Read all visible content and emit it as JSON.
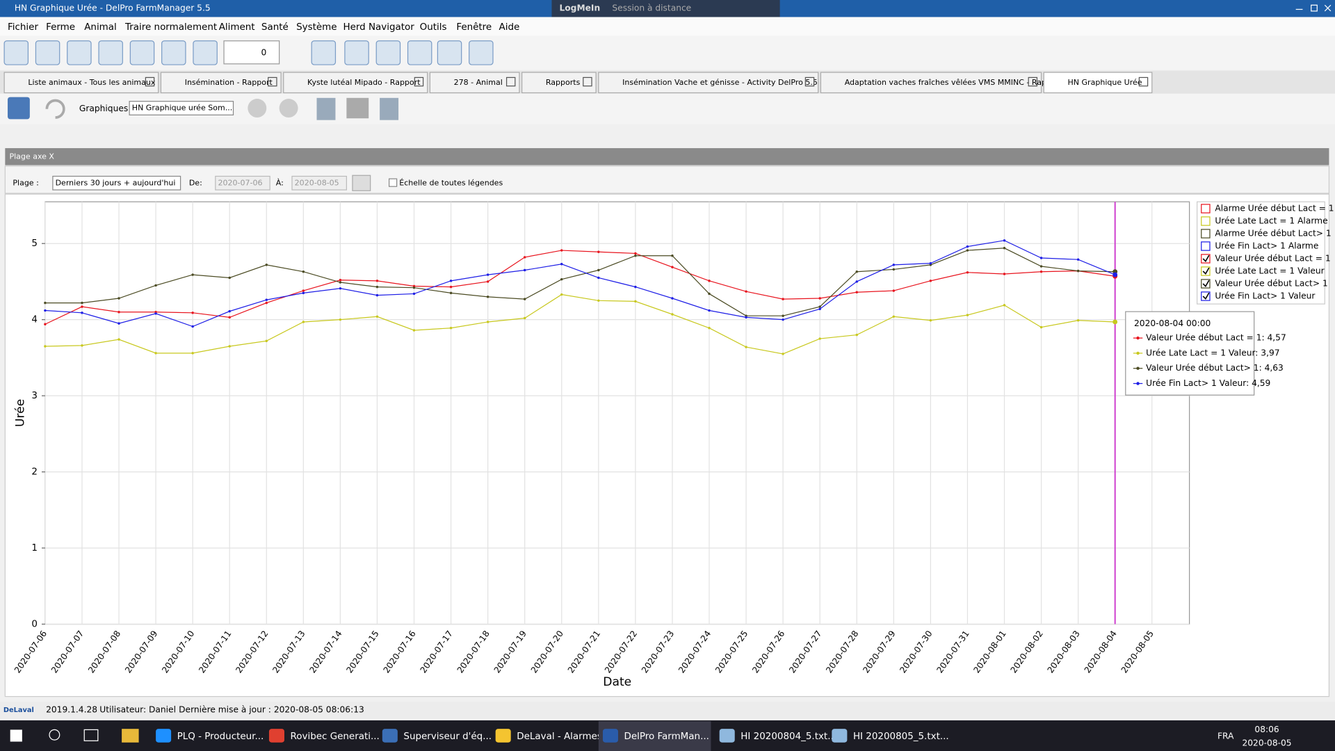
{
  "window": {
    "title": "HN Graphique Urée - DelPro FarmManager 5.5",
    "remote_title": "LogMeIn",
    "remote_subtitle": "Session à distance"
  },
  "menu": [
    "Fichier",
    "Ferme",
    "Animal",
    "Traire normalement",
    "Aliment",
    "Santé",
    "Système",
    "Herd Navigator",
    "Outils",
    "Fenêtre",
    "Aide"
  ],
  "toolbar": {
    "counter": "0"
  },
  "tabs": [
    "Liste animaux - Tous les animaux",
    "Insémination - Rapport",
    "Kyste lutéal Mipado - Rapport",
    "278 - Animal",
    "Rapports",
    "Insémination Vache et génisse - Activity DelPro 5.5 -",
    "Adaptation vaches fraîches vêlées VMS MMINC - Rap",
    "HN Graphique Urée"
  ],
  "graph_toolbar": {
    "label": "Graphiques",
    "selected": "HN Graphique urée Som..."
  },
  "range_panel": {
    "title": "Plage axe X",
    "plage_label": "Plage :",
    "plage": "Derniers 30 jours + aujourd'hui",
    "from_label": "De:",
    "from": "2020-07-06",
    "to_label": "À:",
    "to": "2020-08-05",
    "all_legends": "Échelle de toutes légendes"
  },
  "chart_data": {
    "type": "line",
    "xlabel": "Date",
    "ylabel": "Urée",
    "categories": [
      "2020-07-06",
      "2020-07-07",
      "2020-07-08",
      "2020-07-09",
      "2020-07-10",
      "2020-07-11",
      "2020-07-12",
      "2020-07-13",
      "2020-07-14",
      "2020-07-15",
      "2020-07-16",
      "2020-07-17",
      "2020-07-18",
      "2020-07-19",
      "2020-07-20",
      "2020-07-21",
      "2020-07-22",
      "2020-07-23",
      "2020-07-24",
      "2020-07-25",
      "2020-07-26",
      "2020-07-27",
      "2020-07-28",
      "2020-07-29",
      "2020-07-30",
      "2020-07-31",
      "2020-08-01",
      "2020-08-02",
      "2020-08-03",
      "2020-08-04",
      "2020-08-05"
    ],
    "ylim": [
      0,
      5.5
    ],
    "yticks": [
      0,
      1,
      2,
      3,
      4,
      5
    ],
    "grid": true,
    "alarm_legend": [
      {
        "name": "Alarme Urée début Lact = 1",
        "color": "#e8141e"
      },
      {
        "name": "Urée Late Lact = 1 Alarme",
        "color": "#c8c81e"
      },
      {
        "name": "Alarme Urée début Lact> 1",
        "color": "#4b4b23"
      },
      {
        "name": "Urée Fin Lact> 1 Alarme",
        "color": "#1e1ee6"
      }
    ],
    "series": [
      {
        "name": "Valeur Urée début Lact = 1",
        "color": "#e8141e",
        "values": [
          3.94,
          4.17,
          4.1,
          4.1,
          4.09,
          4.03,
          4.22,
          4.38,
          4.52,
          4.51,
          4.44,
          4.43,
          4.5,
          4.82,
          4.91,
          4.89,
          4.87,
          4.69,
          4.51,
          4.37,
          4.27,
          4.28,
          4.36,
          4.38,
          4.51,
          4.62,
          4.6,
          4.63,
          4.64,
          4.57,
          null
        ]
      },
      {
        "name": "Urée Late Lact = 1 Valeur",
        "color": "#c8c81e",
        "values": [
          3.65,
          3.66,
          3.74,
          3.56,
          3.56,
          3.65,
          3.72,
          3.97,
          4.0,
          4.04,
          3.86,
          3.89,
          3.97,
          4.02,
          4.33,
          4.25,
          4.24,
          4.07,
          3.89,
          3.64,
          3.55,
          3.75,
          3.8,
          4.04,
          3.99,
          4.06,
          4.19,
          3.9,
          3.99,
          3.97,
          null
        ]
      },
      {
        "name": "Valeur Urée début Lact> 1",
        "color": "#4b4b23",
        "values": [
          4.22,
          4.22,
          4.28,
          4.45,
          4.59,
          4.55,
          4.72,
          4.63,
          4.49,
          4.43,
          4.42,
          4.35,
          4.3,
          4.27,
          4.53,
          4.65,
          4.84,
          4.84,
          4.34,
          4.05,
          4.05,
          4.17,
          4.63,
          4.66,
          4.72,
          4.91,
          4.94,
          4.7,
          4.64,
          4.63,
          null
        ]
      },
      {
        "name": "Urée Fin Lact> 1 Valeur",
        "color": "#1e1ee6",
        "values": [
          4.12,
          4.09,
          3.95,
          4.08,
          3.91,
          4.11,
          4.26,
          4.35,
          4.41,
          4.32,
          4.34,
          4.51,
          4.59,
          4.65,
          4.73,
          4.55,
          4.43,
          4.28,
          4.12,
          4.03,
          4.0,
          4.14,
          4.5,
          4.72,
          4.74,
          4.96,
          5.04,
          4.81,
          4.79,
          4.59,
          null
        ]
      }
    ]
  },
  "tooltip": {
    "title": "2020-08-04 00:00",
    "items": [
      {
        "text": "Valeur Urée début Lact = 1: 4,57",
        "color": "#e8141e"
      },
      {
        "text": "Urée Late Lact = 1 Valeur: 3,97",
        "color": "#c8c81e"
      },
      {
        "text": "Valeur Urée début Lact> 1: 4,63",
        "color": "#4b4b23"
      },
      {
        "text": "Urée Fin Lact> 1 Valeur: 4,59",
        "color": "#1e1ee6"
      }
    ]
  },
  "status_bar": {
    "brand": "DeLaval",
    "version": "2019.1.4.28",
    "user": "Utilisateur: Daniel",
    "updated": "Dernière mise à jour : 2020-08-05 08:06:13"
  },
  "taskbar": {
    "apps": [
      "PLQ - Producteur...",
      "Rovibec Generati...",
      "Superviseur d'éq...",
      "DeLaval - Alarmes",
      "DelPro FarmMan...",
      "HI 20200804_5.txt...",
      "HI 20200805_5.txt..."
    ],
    "lang": "FRA",
    "time": "08:06",
    "date": "2020-08-05"
  }
}
